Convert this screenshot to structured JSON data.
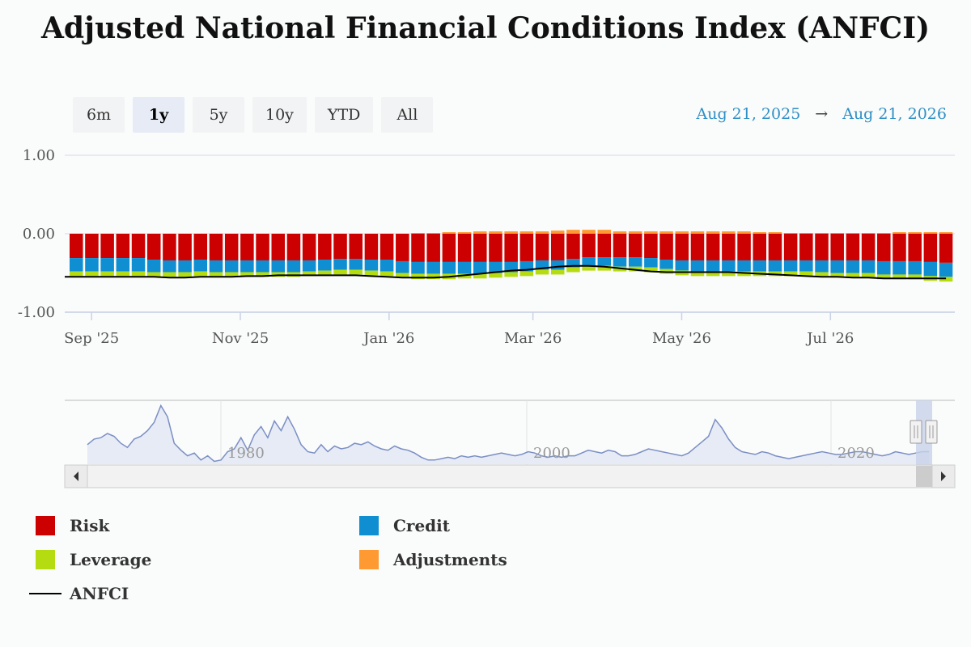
{
  "chart_data": {
    "type": "bar",
    "title": "Adjusted National Financial Conditions Index (ANFCI)",
    "stacked": true,
    "ylim": [
      -1.0,
      1.0
    ],
    "y_ticks": [
      "1.00",
      "0.00",
      "-1.00"
    ],
    "x_ticks": [
      "Sep '25",
      "Nov '25",
      "Jan '26",
      "Mar '26",
      "May '26",
      "Jul '26"
    ],
    "x_start": "2025-08-21",
    "x_end": "2026-08-21",
    "series": [
      {
        "name": "Risk",
        "color": "#cc0000",
        "values": [
          -0.31,
          -0.31,
          -0.31,
          -0.31,
          -0.31,
          -0.33,
          -0.34,
          -0.34,
          -0.33,
          -0.34,
          -0.34,
          -0.34,
          -0.34,
          -0.34,
          -0.34,
          -0.34,
          -0.33,
          -0.32,
          -0.32,
          -0.33,
          -0.33,
          -0.35,
          -0.36,
          -0.36,
          -0.36,
          -0.36,
          -0.36,
          -0.36,
          -0.36,
          -0.35,
          -0.34,
          -0.34,
          -0.32,
          -0.3,
          -0.3,
          -0.3,
          -0.3,
          -0.31,
          -0.33,
          -0.34,
          -0.34,
          -0.34,
          -0.34,
          -0.34,
          -0.34,
          -0.34,
          -0.34,
          -0.34,
          -0.34,
          -0.34,
          -0.34,
          -0.34,
          -0.35,
          -0.35,
          -0.35,
          -0.36,
          -0.37
        ]
      },
      {
        "name": "Credit",
        "color": "#0f8fd1",
        "values": [
          -0.17,
          -0.17,
          -0.17,
          -0.17,
          -0.17,
          -0.16,
          -0.15,
          -0.15,
          -0.15,
          -0.15,
          -0.15,
          -0.15,
          -0.15,
          -0.15,
          -0.15,
          -0.14,
          -0.14,
          -0.14,
          -0.14,
          -0.14,
          -0.15,
          -0.15,
          -0.15,
          -0.15,
          -0.15,
          -0.15,
          -0.15,
          -0.14,
          -0.13,
          -0.13,
          -0.12,
          -0.12,
          -0.11,
          -0.11,
          -0.11,
          -0.12,
          -0.12,
          -0.12,
          -0.12,
          -0.13,
          -0.14,
          -0.14,
          -0.14,
          -0.14,
          -0.14,
          -0.14,
          -0.14,
          -0.14,
          -0.15,
          -0.16,
          -0.16,
          -0.16,
          -0.17,
          -0.17,
          -0.17,
          -0.18,
          -0.18
        ]
      },
      {
        "name": "Leverage",
        "color": "#b5dc10",
        "values": [
          -0.06,
          -0.06,
          -0.06,
          -0.06,
          -0.06,
          -0.06,
          -0.06,
          -0.06,
          -0.06,
          -0.06,
          -0.06,
          -0.06,
          -0.06,
          -0.06,
          -0.06,
          -0.06,
          -0.06,
          -0.06,
          -0.06,
          -0.06,
          -0.06,
          -0.06,
          -0.07,
          -0.07,
          -0.07,
          -0.06,
          -0.06,
          -0.06,
          -0.06,
          -0.06,
          -0.06,
          -0.06,
          -0.06,
          -0.06,
          -0.06,
          -0.06,
          -0.06,
          -0.06,
          -0.06,
          -0.06,
          -0.06,
          -0.06,
          -0.06,
          -0.06,
          -0.06,
          -0.06,
          -0.06,
          -0.06,
          -0.06,
          -0.06,
          -0.06,
          -0.06,
          -0.06,
          -0.06,
          -0.06,
          -0.06,
          -0.06
        ]
      },
      {
        "name": "Adjustments",
        "color": "#ff9a33",
        "values": [
          0.0,
          0.0,
          0.0,
          0.0,
          0.0,
          0.0,
          0.0,
          0.0,
          0.0,
          0.0,
          0.0,
          0.0,
          0.0,
          0.0,
          0.0,
          0.0,
          0.0,
          0.0,
          0.0,
          0.0,
          0.0,
          0.0,
          0.01,
          0.01,
          0.02,
          0.02,
          0.03,
          0.03,
          0.03,
          0.03,
          0.03,
          0.04,
          0.05,
          0.05,
          0.05,
          0.03,
          0.03,
          0.03,
          0.03,
          0.03,
          0.03,
          0.03,
          0.03,
          0.03,
          0.02,
          0.02,
          0.01,
          0.01,
          0.01,
          0.01,
          0.01,
          0.01,
          0.01,
          0.02,
          0.02,
          0.02,
          0.02
        ]
      }
    ],
    "line": {
      "name": "ANFCI",
      "color": "#000000",
      "values": [
        -0.55,
        -0.55,
        -0.55,
        -0.55,
        -0.55,
        -0.55,
        -0.56,
        -0.56,
        -0.55,
        -0.55,
        -0.55,
        -0.54,
        -0.54,
        -0.53,
        -0.53,
        -0.53,
        -0.53,
        -0.53,
        -0.53,
        -0.54,
        -0.55,
        -0.56,
        -0.56,
        -0.56,
        -0.55,
        -0.53,
        -0.51,
        -0.49,
        -0.47,
        -0.46,
        -0.44,
        -0.42,
        -0.41,
        -0.41,
        -0.42,
        -0.44,
        -0.46,
        -0.48,
        -0.49,
        -0.49,
        -0.49,
        -0.49,
        -0.49,
        -0.5,
        -0.51,
        -0.52,
        -0.53,
        -0.54,
        -0.55,
        -0.55,
        -0.56,
        -0.56,
        -0.57,
        -0.57,
        -0.57,
        -0.57,
        -0.57
      ]
    },
    "navigator": {
      "x_ticks": [
        "1980",
        "2000",
        "2020"
      ],
      "values": [
        -0.3,
        -0.1,
        -0.05,
        0.1,
        0.0,
        -0.25,
        -0.4,
        -0.1,
        0.0,
        0.2,
        0.5,
        1.1,
        0.7,
        -0.25,
        -0.5,
        -0.7,
        -0.6,
        -0.85,
        -0.7,
        -0.9,
        -0.85,
        -0.55,
        -0.45,
        -0.05,
        -0.5,
        0.05,
        0.35,
        -0.05,
        0.55,
        0.2,
        0.7,
        0.25,
        -0.3,
        -0.55,
        -0.6,
        -0.3,
        -0.55,
        -0.35,
        -0.45,
        -0.4,
        -0.25,
        -0.3,
        -0.2,
        -0.35,
        -0.45,
        -0.5,
        -0.35,
        -0.45,
        -0.5,
        -0.6,
        -0.75,
        -0.85,
        -0.85,
        -0.8,
        -0.75,
        -0.8,
        -0.7,
        -0.75,
        -0.7,
        -0.75,
        -0.7,
        -0.65,
        -0.6,
        -0.65,
        -0.7,
        -0.65,
        -0.55,
        -0.6,
        -0.7,
        -0.75,
        -0.7,
        -0.75,
        -0.7,
        -0.7,
        -0.6,
        -0.5,
        -0.55,
        -0.6,
        -0.5,
        -0.55,
        -0.7,
        -0.7,
        -0.65,
        -0.55,
        -0.45,
        -0.5,
        -0.55,
        -0.6,
        -0.65,
        -0.7,
        -0.6,
        -0.4,
        -0.2,
        0.0,
        0.6,
        0.3,
        -0.1,
        -0.4,
        -0.55,
        -0.6,
        -0.65,
        -0.55,
        -0.6,
        -0.7,
        -0.75,
        -0.8,
        -0.75,
        -0.7,
        -0.65,
        -0.6,
        -0.55,
        -0.6,
        -0.65,
        -0.65,
        -0.6,
        -0.55,
        -0.55,
        -0.6,
        -0.65,
        -0.7,
        -0.65,
        -0.55,
        -0.6,
        -0.65,
        -0.6,
        -0.55,
        -0.55
      ]
    }
  },
  "range_selector": {
    "buttons": [
      "6m",
      "1y",
      "5y",
      "10y",
      "YTD",
      "All"
    ],
    "selected": "1y",
    "from": "Aug 21, 2025",
    "arrow": "→",
    "to": "Aug 21, 2026"
  },
  "legend": {
    "risk": {
      "label": "Risk",
      "color": "#cc0000"
    },
    "credit": {
      "label": "Credit",
      "color": "#0f8fd1"
    },
    "leverage": {
      "label": "Leverage",
      "color": "#b5dc10"
    },
    "adjustments": {
      "label": "Adjustments",
      "color": "#ff9a33"
    },
    "anfci": {
      "label": "ANFCI",
      "color": "#000000"
    }
  }
}
